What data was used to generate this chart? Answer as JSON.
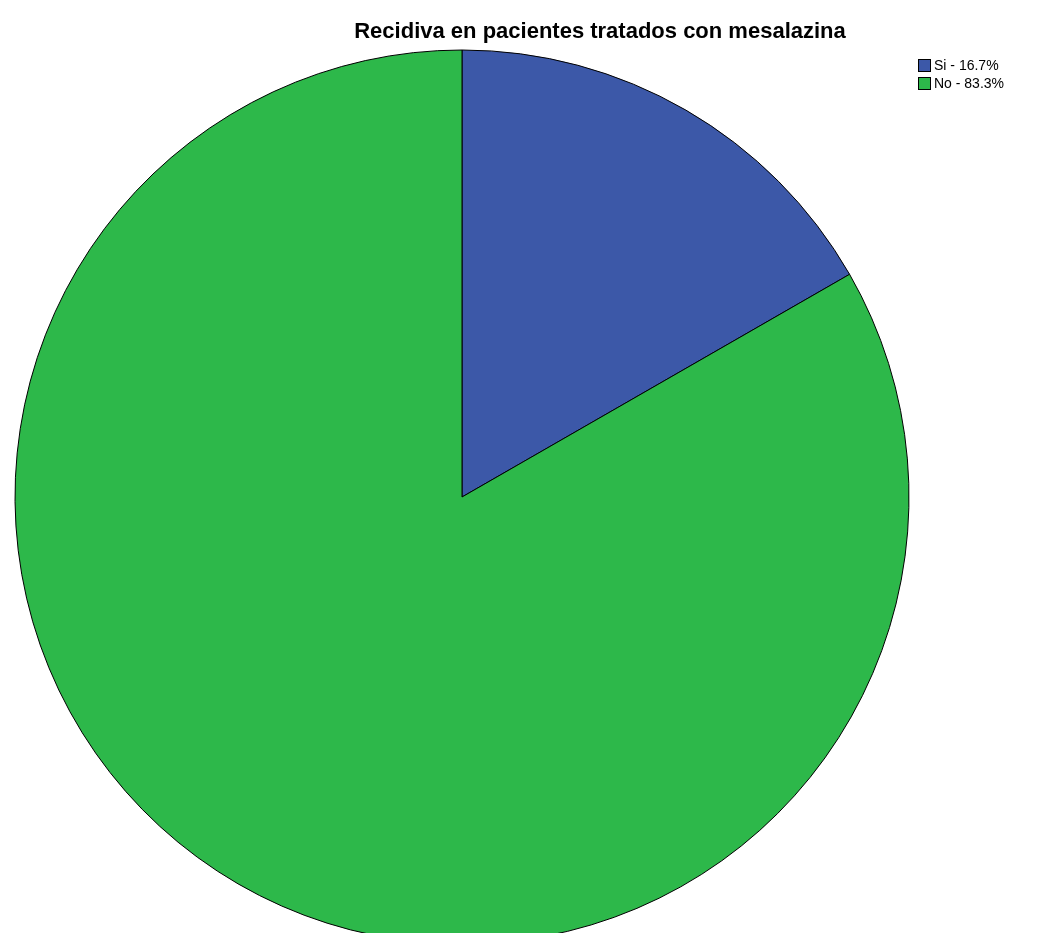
{
  "chart_data": {
    "type": "pie",
    "title": "Recidiva en pacientes tratados con mesalazina",
    "categories": [
      "Si - 16.7%",
      "No - 83.3%"
    ],
    "values": [
      16.7,
      83.3
    ],
    "colors": [
      "#3c58a8",
      "#2db84a"
    ],
    "legend": "top right"
  }
}
